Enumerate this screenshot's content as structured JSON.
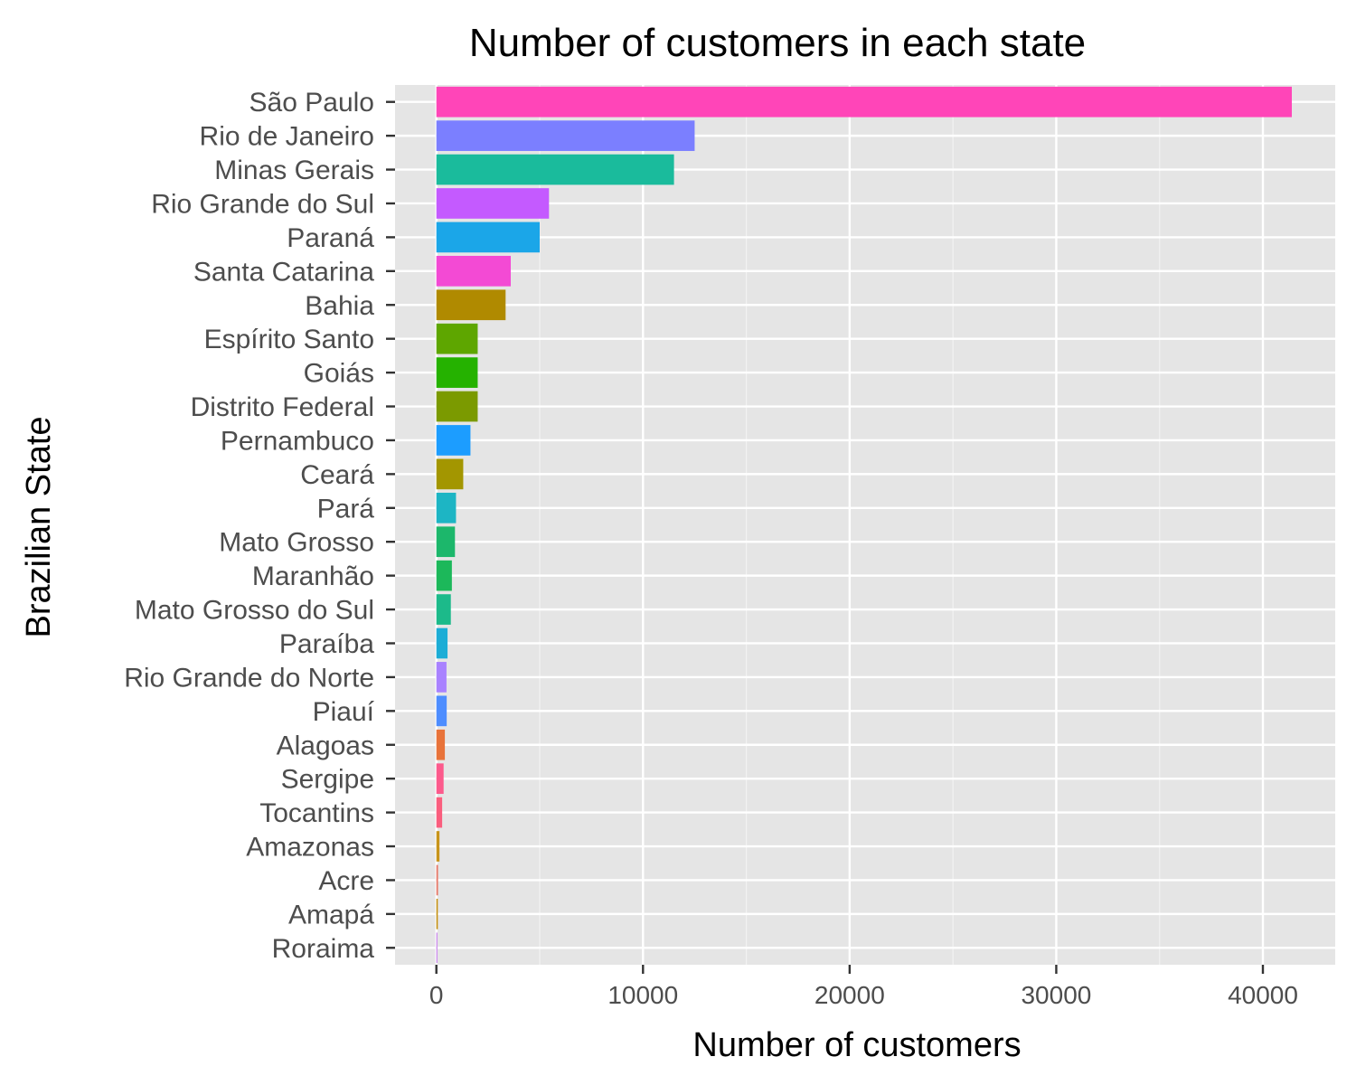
{
  "chart_data": {
    "type": "bar",
    "orientation": "horizontal",
    "title": "Number of customers in each state",
    "xlabel": "Number of customers",
    "ylabel": "Brazilian State",
    "xlim": [
      -2000,
      43500
    ],
    "xticks": [
      0,
      10000,
      20000,
      30000,
      40000
    ],
    "xtick_labels": [
      "0",
      "10000",
      "20000",
      "30000",
      "40000"
    ],
    "grid": true,
    "legend": "none",
    "panel_background": "#e5e5e5",
    "bars": [
      {
        "category": "São Paulo",
        "value": 41400,
        "color": "#ff45b8"
      },
      {
        "category": "Rio de Janeiro",
        "value": 12500,
        "color": "#7b7fff"
      },
      {
        "category": "Minas Gerais",
        "value": 11500,
        "color": "#1abb9c"
      },
      {
        "category": "Rio Grande do Sul",
        "value": 5450,
        "color": "#c45aff"
      },
      {
        "category": "Paraná",
        "value": 5000,
        "color": "#1ba6e8"
      },
      {
        "category": "Santa Catarina",
        "value": 3600,
        "color": "#f34ad4"
      },
      {
        "category": "Bahia",
        "value": 3350,
        "color": "#b08a00"
      },
      {
        "category": "Espírito Santo",
        "value": 2000,
        "color": "#5ea600"
      },
      {
        "category": "Goiás",
        "value": 2000,
        "color": "#25b200"
      },
      {
        "category": "Distrito Federal",
        "value": 2000,
        "color": "#7b9a00"
      },
      {
        "category": "Pernambuco",
        "value": 1650,
        "color": "#1c9dff"
      },
      {
        "category": "Ceará",
        "value": 1300,
        "color": "#a39600"
      },
      {
        "category": "Pará",
        "value": 950,
        "color": "#1db5c4"
      },
      {
        "category": "Mato Grosso",
        "value": 900,
        "color": "#1cb76b"
      },
      {
        "category": "Maranhão",
        "value": 750,
        "color": "#1cb85a"
      },
      {
        "category": "Mato Grosso do Sul",
        "value": 700,
        "color": "#1cba8a"
      },
      {
        "category": "Paraíba",
        "value": 540,
        "color": "#1cadd6"
      },
      {
        "category": "Rio Grande do Norte",
        "value": 490,
        "color": "#a982ff"
      },
      {
        "category": "Piauí",
        "value": 500,
        "color": "#4d8dff"
      },
      {
        "category": "Alagoas",
        "value": 410,
        "color": "#e8733a"
      },
      {
        "category": "Sergipe",
        "value": 350,
        "color": "#fc5a8c"
      },
      {
        "category": "Tocantins",
        "value": 280,
        "color": "#fa5e7e"
      },
      {
        "category": "Amazonas",
        "value": 150,
        "color": "#c8941a"
      },
      {
        "category": "Acre",
        "value": 80,
        "color": "#e77868"
      },
      {
        "category": "Amapá",
        "value": 70,
        "color": "#c49010"
      },
      {
        "category": "Roraima",
        "value": 46,
        "color": "#bf6fe8"
      }
    ]
  }
}
